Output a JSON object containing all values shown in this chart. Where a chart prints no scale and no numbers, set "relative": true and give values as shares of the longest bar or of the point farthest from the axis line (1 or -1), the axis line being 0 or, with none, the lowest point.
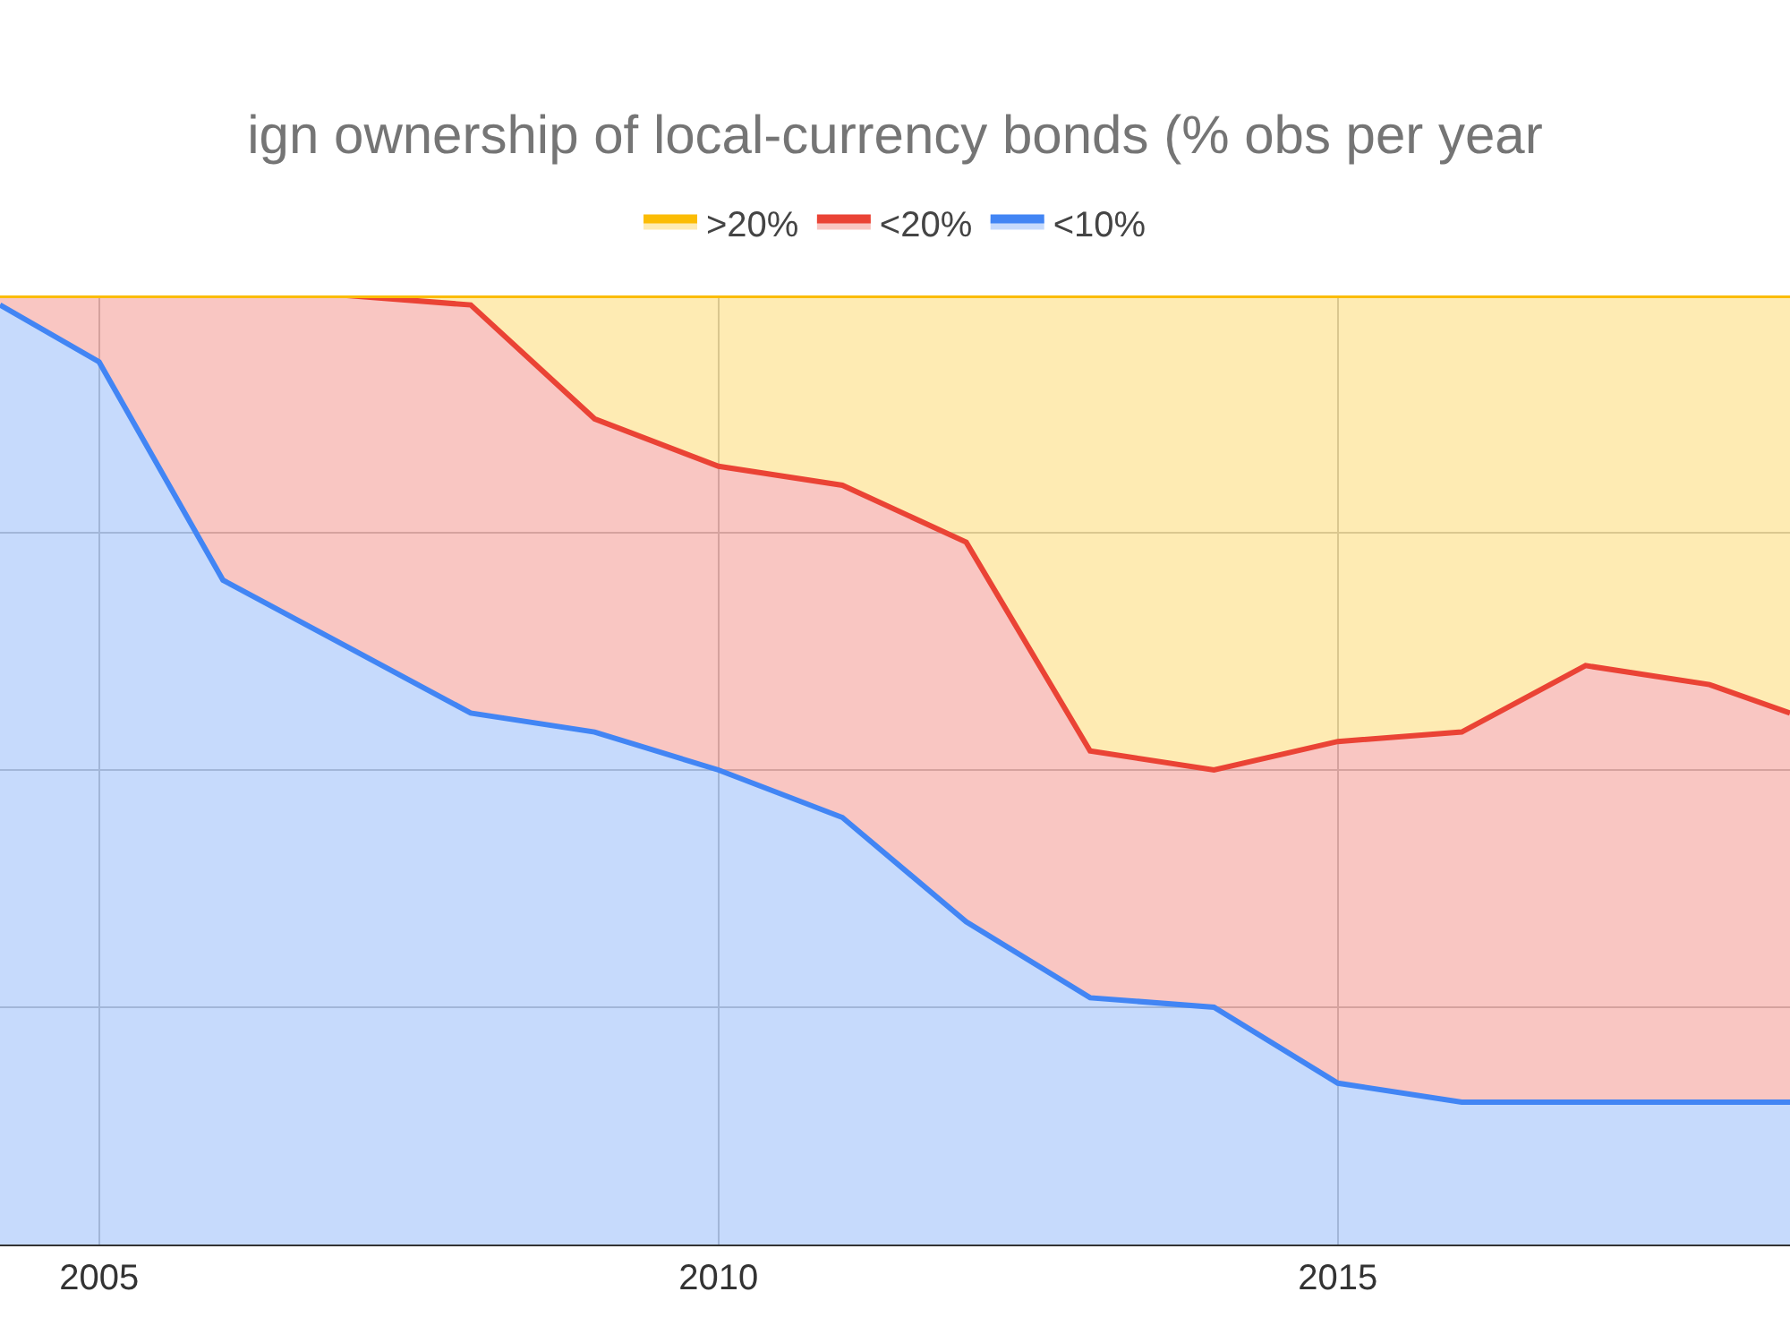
{
  "chart_data": {
    "type": "area",
    "stacked": true,
    "relative": true,
    "title": "ign ownership of local-currency bonds (% obs per year",
    "x": [
      2004.2,
      2005,
      2006,
      2007,
      2008,
      2009,
      2010,
      2011,
      2012,
      2013,
      2014,
      2015,
      2016,
      2017,
      2018,
      2018.65
    ],
    "xlim": [
      2004.2,
      2018.65
    ],
    "xticks": [
      2005,
      2010,
      2015
    ],
    "series": [
      {
        "name": "<10%",
        "color": "#4285f4",
        "values": [
          0.99,
          0.93,
          0.7,
          0.63,
          0.56,
          0.54,
          0.5,
          0.45,
          0.34,
          0.26,
          0.25,
          0.17,
          0.15,
          0.15,
          0.15,
          0.15
        ]
      },
      {
        "name": "<20%",
        "color": "#ea4335",
        "values": [
          0.01,
          0.07,
          0.3,
          0.37,
          0.43,
          0.33,
          0.32,
          0.35,
          0.4,
          0.26,
          0.25,
          0.36,
          0.39,
          0.46,
          0.44,
          0.41
        ]
      },
      {
        "name": ">20%",
        "color": "#fbbc04",
        "values": [
          0.0,
          0.0,
          0.0,
          0.0,
          0.01,
          0.13,
          0.18,
          0.2,
          0.26,
          0.48,
          0.5,
          0.47,
          0.46,
          0.39,
          0.41,
          0.44
        ]
      }
    ],
    "grid": true,
    "legend": "top"
  }
}
